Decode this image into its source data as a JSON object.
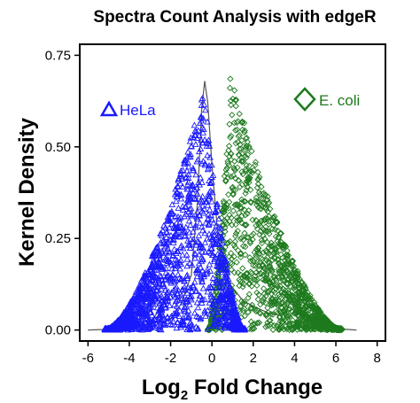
{
  "chart_data": {
    "type": "scatter",
    "title": "Spectra Count Analysis with edgeR",
    "xlabel_main": "Log",
    "xlabel_sub": "2",
    "xlabel_rest": " Fold Change",
    "ylabel": "Kernel Density",
    "xlim": [
      -6.4,
      8.4
    ],
    "ylim": [
      -0.03,
      0.78
    ],
    "xticks": [
      -6,
      -4,
      -2,
      0,
      2,
      4,
      6,
      8
    ],
    "yticks": [
      0.0,
      0.25,
      0.5,
      0.75
    ],
    "ytick_labels": [
      "0.00",
      "0.25",
      "0.50",
      "0.75"
    ],
    "grid": false,
    "legend_placement": "top",
    "series": [
      {
        "name": "HeLa",
        "marker": "triangle",
        "color": "#1a1aff",
        "peak_x": -0.4,
        "peak_y": 0.66,
        "x_range": [
          -5.2,
          1.6
        ]
      },
      {
        "name": "E. coli",
        "marker": "diamond",
        "color": "#1e7a1e",
        "peak_x": 0.9,
        "peak_y": 0.7,
        "x_range": [
          -0.2,
          6.3
        ]
      }
    ],
    "density_curve": {
      "color": "#555555",
      "points": [
        [
          -6.0,
          0.0
        ],
        [
          -4.5,
          0.003
        ],
        [
          -3.5,
          0.01
        ],
        [
          -3.0,
          0.02
        ],
        [
          -2.6,
          0.05
        ],
        [
          -2.3,
          0.02
        ],
        [
          -2.0,
          0.03
        ],
        [
          -1.5,
          0.07
        ],
        [
          -1.0,
          0.15
        ],
        [
          -0.7,
          0.35
        ],
        [
          -0.5,
          0.6
        ],
        [
          -0.35,
          0.68
        ],
        [
          -0.2,
          0.62
        ],
        [
          0.0,
          0.45
        ],
        [
          0.3,
          0.25
        ],
        [
          0.8,
          0.13
        ],
        [
          1.5,
          0.08
        ],
        [
          2.2,
          0.06
        ],
        [
          2.8,
          0.045
        ],
        [
          3.3,
          0.04
        ],
        [
          3.6,
          0.055
        ],
        [
          3.85,
          0.08
        ],
        [
          4.05,
          0.05
        ],
        [
          4.5,
          0.03
        ],
        [
          5.0,
          0.02
        ],
        [
          5.5,
          0.01
        ],
        [
          6.2,
          0.003
        ],
        [
          7.0,
          0.0
        ]
      ]
    }
  }
}
